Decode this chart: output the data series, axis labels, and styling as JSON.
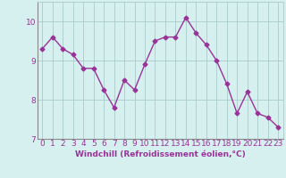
{
  "x": [
    0,
    1,
    2,
    3,
    4,
    5,
    6,
    7,
    8,
    9,
    10,
    11,
    12,
    13,
    14,
    15,
    16,
    17,
    18,
    19,
    20,
    21,
    22,
    23
  ],
  "y": [
    9.3,
    9.6,
    9.3,
    9.15,
    8.8,
    8.8,
    8.25,
    7.8,
    8.5,
    8.25,
    8.9,
    9.5,
    9.6,
    9.6,
    10.1,
    9.7,
    9.4,
    9.0,
    8.4,
    7.65,
    8.2,
    7.65,
    7.55,
    7.3
  ],
  "line_color": "#993399",
  "marker": "D",
  "marker_size": 2.5,
  "line_width": 1.0,
  "bg_color": "#d6f0ef",
  "grid_color": "#aacccc",
  "tick_color": "#993399",
  "label_color": "#993399",
  "xlabel": "Windchill (Refroidissement éolien,°C)",
  "ylabel": "",
  "ylim": [
    7.0,
    10.5
  ],
  "xlim": [
    -0.5,
    23.5
  ],
  "yticks": [
    7,
    8,
    9,
    10
  ],
  "xticks": [
    0,
    1,
    2,
    3,
    4,
    5,
    6,
    7,
    8,
    9,
    10,
    11,
    12,
    13,
    14,
    15,
    16,
    17,
    18,
    19,
    20,
    21,
    22,
    23
  ],
  "font_size": 6.5,
  "xlabel_fontsize": 6.5
}
